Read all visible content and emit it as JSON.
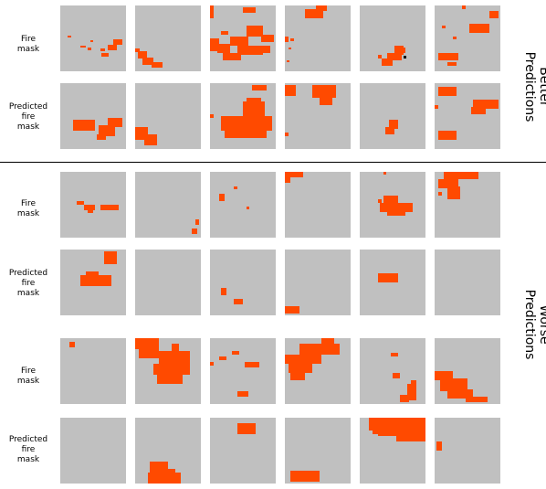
{
  "row_labels": {
    "fire_mask": [
      "Fire",
      "mask"
    ],
    "predicted_fire_mask": [
      "Predicted",
      "fire",
      "mask"
    ]
  },
  "group_labels": {
    "better": [
      "Better",
      "Predictions"
    ],
    "worse": [
      "Worse",
      "Predictions"
    ]
  },
  "colors": {
    "background_tile": "#c0c0c0",
    "fire": "#ff4a00",
    "divider": "#000000"
  },
  "grid": {
    "columns": 6,
    "groups": [
      {
        "name": "better",
        "rows": [
          "fire_mask",
          "predicted_fire_mask"
        ]
      },
      {
        "name": "worse",
        "rows": [
          "fire_mask",
          "predicted_fire_mask",
          "fire_mask",
          "predicted_fire_mask"
        ]
      }
    ]
  }
}
